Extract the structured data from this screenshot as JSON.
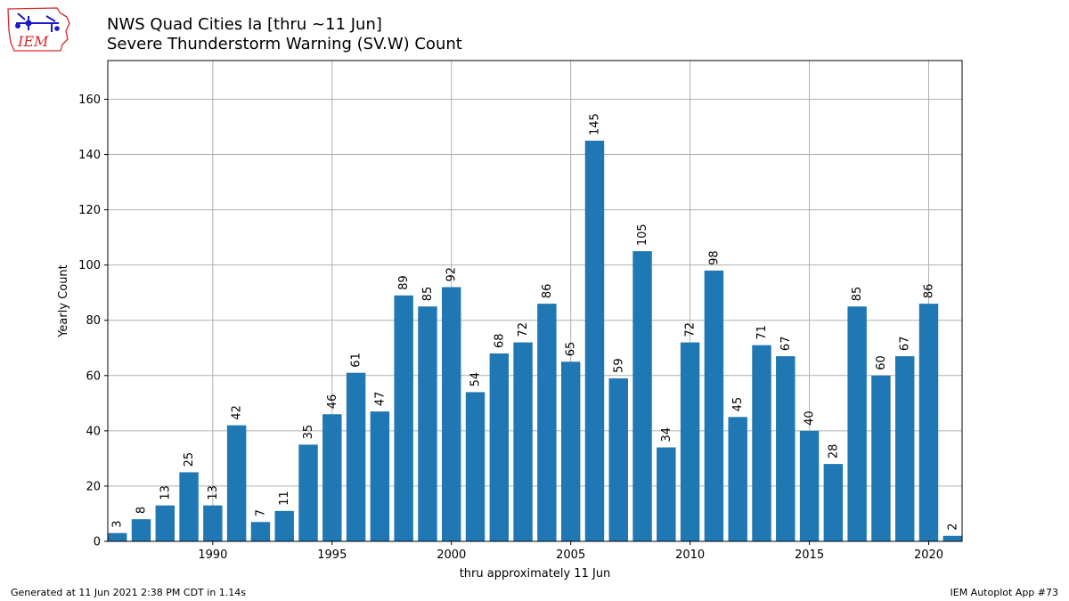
{
  "header": {
    "title_line1": "NWS Quad Cities Ia [thru ~11 Jun]",
    "title_line2": "Severe Thunderstorm Warning (SV.W) Count",
    "logo_text": "IEM"
  },
  "footer": {
    "generated": "Generated at 11 Jun 2021 2:38 PM CDT in 1.14s",
    "app": "IEM Autoplot App #73"
  },
  "colors": {
    "bar": "#1f77b4",
    "grid": "#b0b0b0",
    "logo": "#d62728",
    "logo_icon": "#1a1ac8"
  },
  "chart_data": {
    "type": "bar",
    "title": "NWS Quad Cities Ia [thru ~11 Jun]\nSevere Thunderstorm Warning (SV.W) Count",
    "xlabel": "thru approximately 11 Jun",
    "ylabel": "Yearly Count",
    "categories": [
      1986,
      1987,
      1988,
      1989,
      1990,
      1991,
      1992,
      1993,
      1994,
      1995,
      1996,
      1997,
      1998,
      1999,
      2000,
      2001,
      2002,
      2003,
      2004,
      2005,
      2006,
      2007,
      2008,
      2009,
      2010,
      2011,
      2012,
      2013,
      2014,
      2015,
      2016,
      2017,
      2018,
      2019,
      2020,
      2021
    ],
    "values": [
      3,
      8,
      13,
      25,
      13,
      42,
      7,
      11,
      35,
      46,
      61,
      47,
      89,
      85,
      92,
      54,
      68,
      72,
      86,
      65,
      145,
      59,
      105,
      34,
      72,
      98,
      45,
      71,
      67,
      40,
      28,
      85,
      60,
      67,
      86,
      2
    ],
    "xlim": [
      1985.6,
      2021.4
    ],
    "ylim": [
      0,
      174
    ],
    "xticks": [
      1990,
      1995,
      2000,
      2005,
      2010,
      2015,
      2020
    ],
    "yticks": [
      0,
      20,
      40,
      60,
      80,
      100,
      120,
      140,
      160
    ],
    "grid": true,
    "data_labels": true
  }
}
